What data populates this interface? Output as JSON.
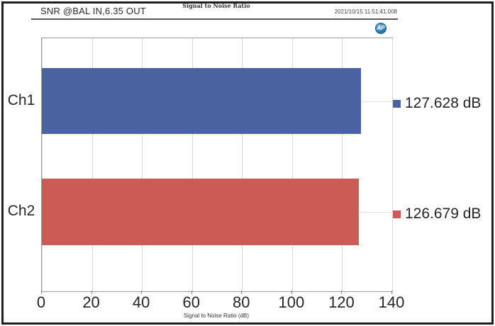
{
  "header": {
    "title": "SNR @BAL IN,6.35 OUT",
    "center_label": "Signal to Noise Ratio",
    "timestamp": "2021/10/15 11:51:41.008",
    "logo_text": "AP"
  },
  "chart_data": {
    "type": "bar",
    "orientation": "horizontal",
    "title": "Signal to Noise Ratio",
    "xlabel": "Signal to Noise Ratio (dB)",
    "categories": [
      "Ch1",
      "Ch2"
    ],
    "values": [
      127.628,
      126.679
    ],
    "value_labels": [
      "127.628 dB",
      "126.679 dB"
    ],
    "unit": "dB",
    "xlim": [
      0,
      140
    ],
    "x_ticks": [
      0,
      20,
      40,
      60,
      80,
      100,
      120,
      140
    ],
    "grid": true,
    "legend_position": "right",
    "series_colors": [
      "#4a62a0",
      "#cc5a55"
    ]
  },
  "colors": {
    "frame": "#1f1f1f",
    "grid": "#d9d9d9",
    "plot_border": "#9c9c9c",
    "logo_blue": "#2e7cb8",
    "text": "#262626"
  }
}
